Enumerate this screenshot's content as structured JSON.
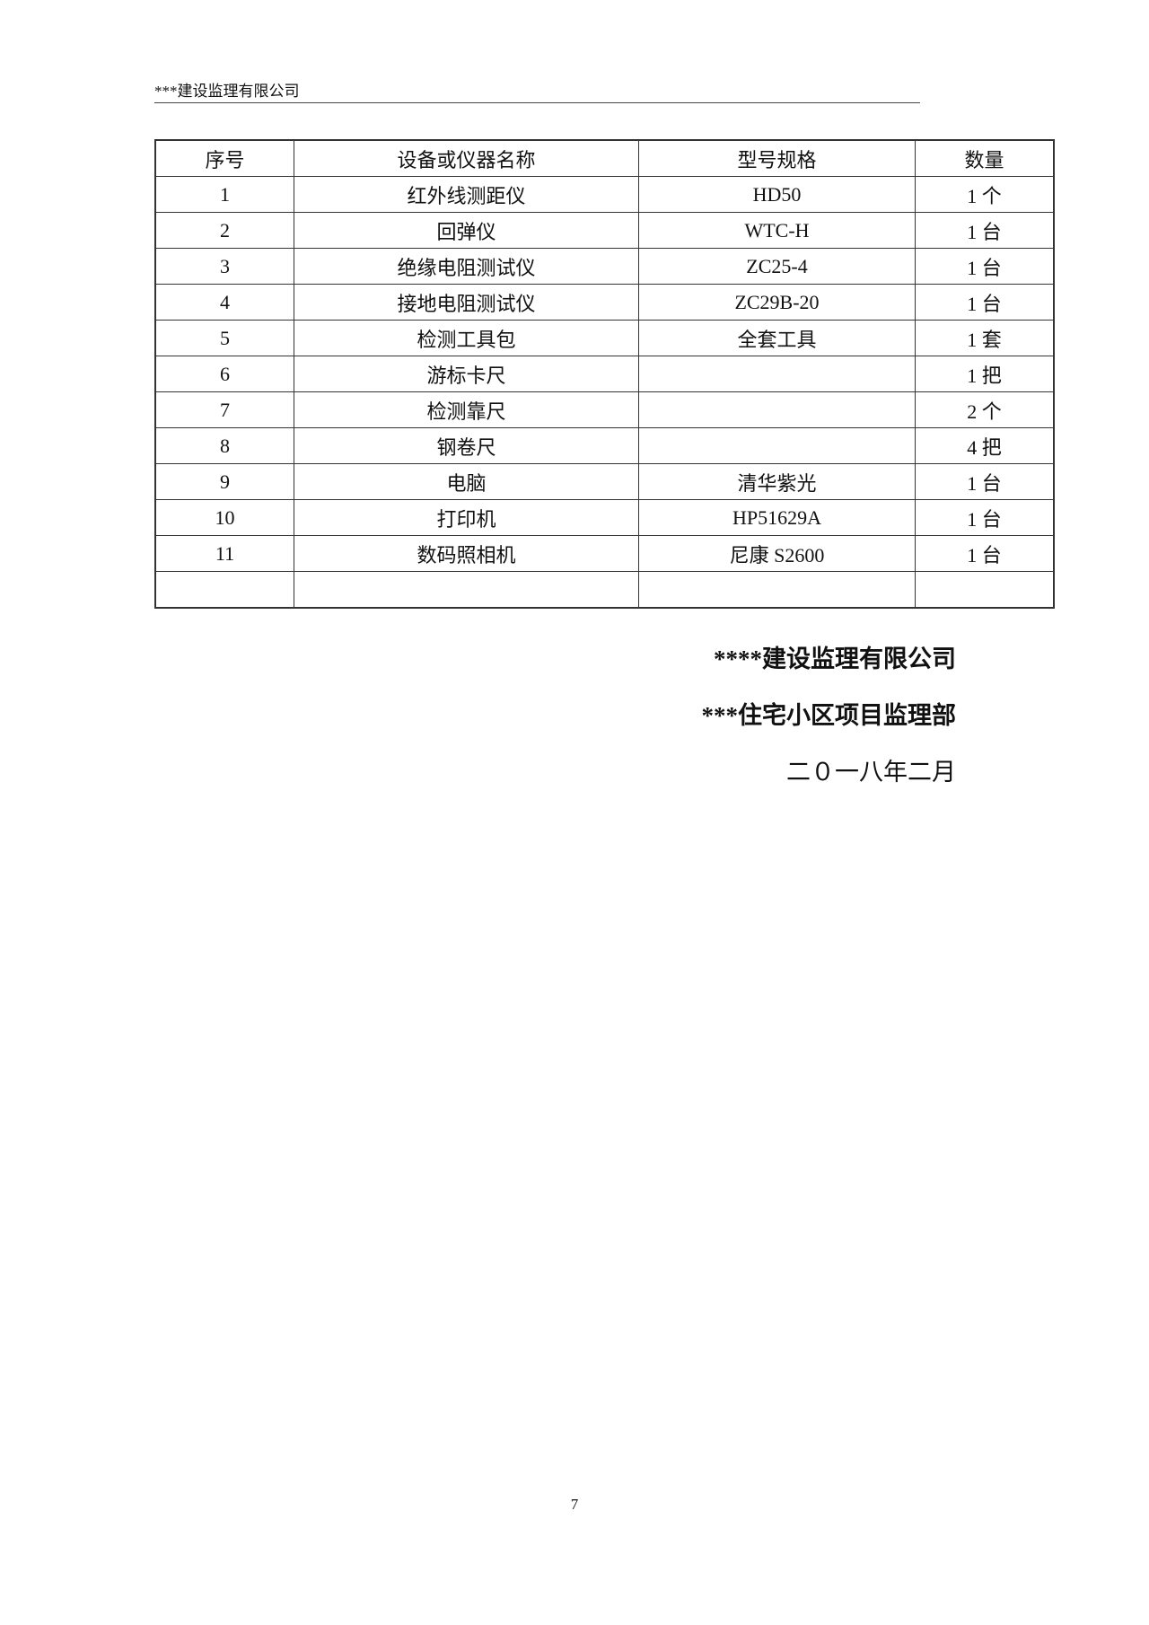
{
  "header": {
    "text": "***建设监理有限公司"
  },
  "table": {
    "columns": [
      "序号",
      "设备或仪器名称",
      "型号规格",
      "数量"
    ],
    "rows": [
      [
        "1",
        "红外线测距仪",
        "HD50",
        "1 个"
      ],
      [
        "2",
        "回弹仪",
        "WTC-H",
        "1 台"
      ],
      [
        "3",
        "绝缘电阻测试仪",
        "ZC25-4",
        "1 台"
      ],
      [
        "4",
        "接地电阻测试仪",
        "ZC29B-20",
        "1 台"
      ],
      [
        "5",
        "检测工具包",
        "全套工具",
        "1 套"
      ],
      [
        "6",
        "游标卡尺",
        "",
        "1 把"
      ],
      [
        "7",
        "检测靠尺",
        "",
        "2 个"
      ],
      [
        "8",
        "钢卷尺",
        "",
        "4 把"
      ],
      [
        "9",
        "电脑",
        "清华紫光",
        "1 台"
      ],
      [
        "10",
        "打印机",
        "HP51629A",
        "1 台"
      ],
      [
        "11",
        "数码照相机",
        "尼康 S2600",
        "1 台"
      ],
      [
        "",
        "",
        "",
        ""
      ]
    ]
  },
  "signature": {
    "company": "****建设监理有限公司",
    "department": "***住宅小区项目监理部",
    "date": "二０一八年二月"
  },
  "page_number": "7"
}
